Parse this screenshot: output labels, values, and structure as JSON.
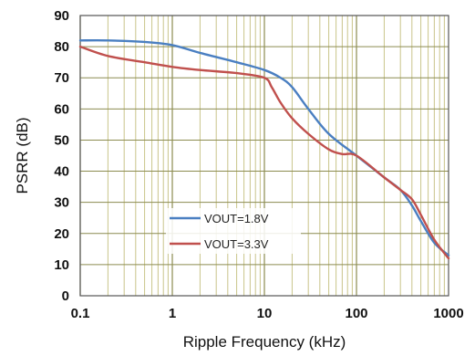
{
  "chart_data": {
    "type": "line",
    "title": "",
    "xlabel": "Ripple Frequency (kHz)",
    "ylabel": "PSRR (dB)",
    "x_scale": "log",
    "xlim": [
      0.1,
      1000
    ],
    "ylim": [
      0,
      90
    ],
    "x_ticks": [
      0.1,
      1,
      10,
      100,
      1000
    ],
    "x_tick_labels": [
      "0.1",
      "1",
      "10",
      "100",
      "1000"
    ],
    "y_ticks": [
      0,
      10,
      20,
      30,
      40,
      50,
      60,
      70,
      80,
      90
    ],
    "y_tick_labels": [
      "0",
      "10",
      "20",
      "30",
      "40",
      "50",
      "60",
      "70",
      "80",
      "90"
    ],
    "grid": true,
    "legend_position": "bottom-center",
    "series": [
      {
        "name": "VOUT=1.8V",
        "color": "#4a7fc1",
        "x": [
          0.1,
          0.2,
          0.5,
          1,
          2,
          5,
          10,
          15,
          20,
          30,
          50,
          100,
          200,
          300,
          400,
          500,
          700,
          1000
        ],
        "y": [
          82,
          82,
          81.5,
          80.5,
          78,
          75,
          72.5,
          70,
          67,
          60,
          52,
          45,
          38,
          34,
          29,
          24,
          17,
          13
        ]
      },
      {
        "name": "VOUT=3.3V",
        "color": "#c0504d",
        "x": [
          0.1,
          0.2,
          0.5,
          1,
          2,
          5,
          10,
          12,
          15,
          20,
          30,
          50,
          70,
          100,
          200,
          300,
          400,
          500,
          700,
          1000
        ],
        "y": [
          80,
          77,
          75,
          73.5,
          72.5,
          71.5,
          70,
          67,
          62,
          57,
          52,
          47,
          45.5,
          45,
          38,
          34,
          31,
          26,
          18,
          12
        ]
      }
    ]
  }
}
